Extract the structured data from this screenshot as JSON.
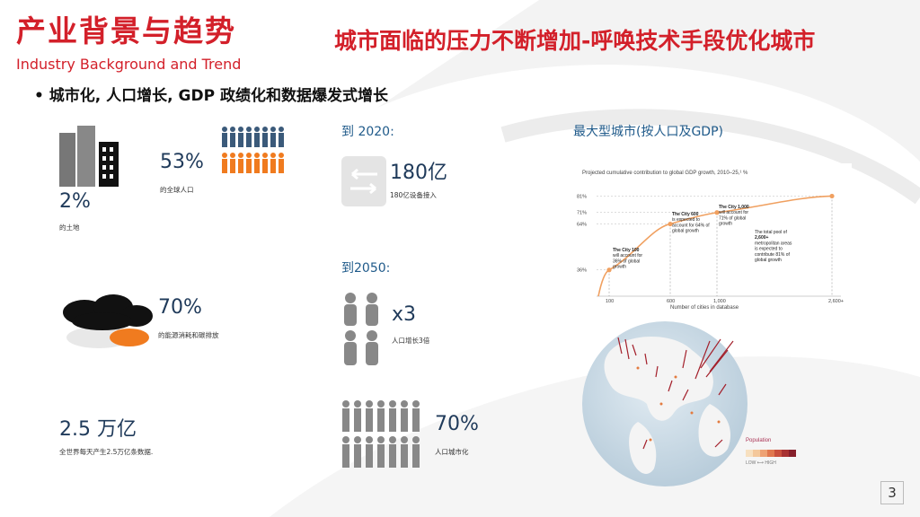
{
  "header": {
    "title_cn": "产业背景与趋势",
    "title_en": "Industry Background and Trend",
    "headline": "城市面临的压力不断增加-呼唤技术手段优化城市"
  },
  "bullet": "城市化, 人口增长, GDP 政绩化和数据爆发式增长",
  "stats": {
    "land_pct": "2%",
    "land_label": "的土地",
    "pop_pct": "53%",
    "pop_label": "的全球人口",
    "energy_pct": "70%",
    "energy_label": "的能源消耗和碳排放",
    "data_value": "2.5 万亿",
    "data_label": "全世界每天产生2.5万亿条数据."
  },
  "forecast": {
    "y2020_label": "到 2020:",
    "devices_value": "180亿",
    "devices_label": "180亿设备接入",
    "y2050_label": "到2050:",
    "pop_mult": "x3",
    "pop_mult_label": "人口增长3倍",
    "urban_pct": "70%",
    "urban_label": "人口城市化"
  },
  "map_title": "最大型城市(按人口及GDP)",
  "chart_data": {
    "type": "line",
    "title": "Projected cumulative contribution to global GDP growth, 2010–25,¹ %",
    "xlabel": "Number of cities in database",
    "x_ticks": [
      "100",
      "600",
      "1,000",
      "2,600+"
    ],
    "y_ticks": [
      "36%",
      "64%",
      "71%",
      "81%"
    ],
    "points": [
      {
        "x": 100,
        "y": 36
      },
      {
        "x": 600,
        "y": 64
      },
      {
        "x": 1000,
        "y": 71
      },
      {
        "x": 2600,
        "y": 81
      }
    ],
    "annotations": [
      {
        "bold": "The City 100",
        "text": "will account for 36% of global growth"
      },
      {
        "bold": "The City 600",
        "text": "is expected to account for 64% of global growth"
      },
      {
        "bold": "The City 1,000",
        "text": "will account for 71% of global growth"
      },
      {
        "bold": "2,600+",
        "prefix": "The total pool of",
        "text": "metropolitan areas is expected to contribute 81% of global growth"
      }
    ],
    "color": "#f0a060"
  },
  "map_legend": {
    "title": "Population",
    "low": "LOW",
    "high": "HIGH"
  },
  "page_number": "3",
  "colors": {
    "brand_red": "#d3202a",
    "accent_orange": "#f07b1f",
    "navy": "#1f3a5a",
    "gray": "#7a7a7a"
  }
}
